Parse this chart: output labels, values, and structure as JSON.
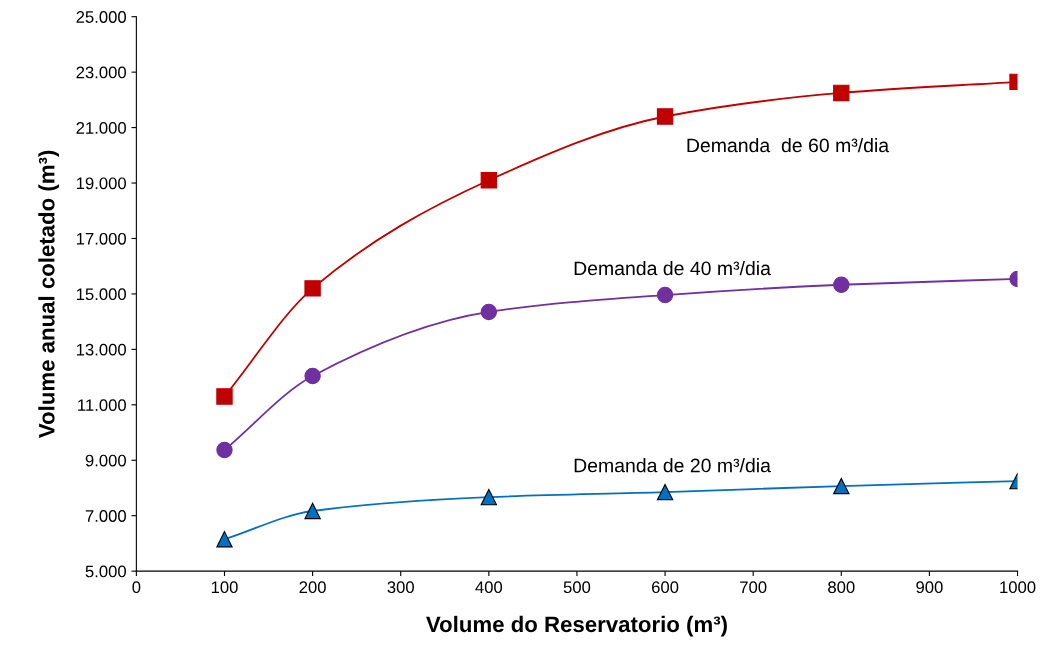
{
  "chart_data": {
    "type": "line",
    "xlabel": "Volume do Reservatorio (m³)",
    "ylabel": "Volume anual coletado (m³)",
    "x": [
      100,
      200,
      400,
      600,
      800,
      1000
    ],
    "series": [
      {
        "name": "Demanda  de 60 m³/dia",
        "color": "#c00000",
        "marker": "square",
        "values": [
          11300,
          15200,
          19100,
          21400,
          22250,
          22650
        ]
      },
      {
        "name": "Demanda de 40 m³/dia",
        "color": "#7030a0",
        "marker": "circle",
        "values": [
          9370,
          12040,
          14350,
          14960,
          15330,
          15540
        ]
      },
      {
        "name": "Demanda de 20 m³/dia",
        "color": "#0070c0",
        "marker": "triangle",
        "values": [
          6150,
          7170,
          7670,
          7850,
          8070,
          8250
        ]
      }
    ],
    "xlim": [
      0,
      1000
    ],
    "xticks": [
      0,
      100,
      200,
      300,
      400,
      500,
      600,
      700,
      800,
      900,
      1000
    ],
    "ylim": [
      5000,
      25000
    ],
    "yticks": [
      {
        "value": 5000,
        "label": "5.000"
      },
      {
        "value": 7000,
        "label": "7.000"
      },
      {
        "value": 9000,
        "label": "9.000"
      },
      {
        "value": 11000,
        "label": "11.000"
      },
      {
        "value": 13000,
        "label": "13.000"
      },
      {
        "value": 15000,
        "label": "15.000"
      },
      {
        "value": 17000,
        "label": "17.000"
      },
      {
        "value": 19000,
        "label": "19.000"
      },
      {
        "value": 21000,
        "label": "21.000"
      },
      {
        "value": 23000,
        "label": "23.000"
      },
      {
        "value": 25000,
        "label": "25.000"
      }
    ],
    "grid": false,
    "legend": false,
    "line_style": "solid"
  }
}
